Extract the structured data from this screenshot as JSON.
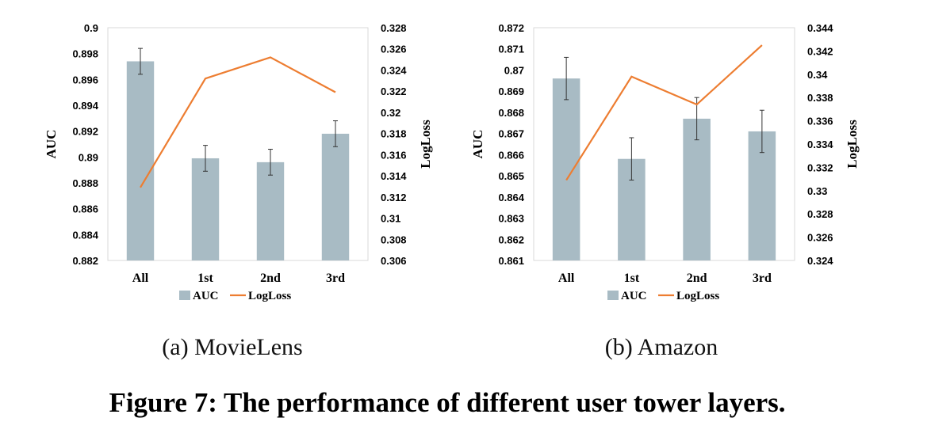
{
  "figure": {
    "caption": "Figure 7: The performance of different user tower layers."
  },
  "chart_data": [
    {
      "type": "bar",
      "subtitle": "(a)  MovieLens",
      "categories": [
        "All",
        "1st",
        "2nd",
        "3rd"
      ],
      "ylabel": "AUC",
      "y2label": "LogLoss",
      "ylim": [
        0.882,
        0.9
      ],
      "yticks": [
        "0.9",
        "0.898",
        "0.896",
        "0.894",
        "0.892",
        "0.89",
        "0.888",
        "0.886",
        "0.884",
        "0.882"
      ],
      "y2lim": [
        0.306,
        0.328
      ],
      "y2ticks": [
        "0.328",
        "0.326",
        "0.324",
        "0.322",
        "0.32",
        "0.318",
        "0.316",
        "0.314",
        "0.312",
        "0.31",
        "0.308",
        "0.306"
      ],
      "series": [
        {
          "name": "AUC",
          "kind": "bar",
          "axis": "left",
          "color": "#a8bbc4",
          "values": [
            0.8974,
            0.8899,
            0.8896,
            0.8918
          ],
          "errors": [
            0.001,
            0.001,
            0.001,
            0.001
          ]
        },
        {
          "name": "LogLoss",
          "kind": "line",
          "axis": "right",
          "color": "#ed7d31",
          "values": [
            0.3129,
            0.3232,
            0.3252,
            0.3219
          ]
        }
      ],
      "legend": "bottom"
    },
    {
      "type": "bar",
      "subtitle": "(b)  Amazon",
      "categories": [
        "All",
        "1st",
        "2nd",
        "3rd"
      ],
      "ylabel": "AUC",
      "y2label": "LogLoss",
      "ylim": [
        0.861,
        0.872
      ],
      "yticks": [
        "0.872",
        "0.871",
        "0.87",
        "0.869",
        "0.868",
        "0.867",
        "0.866",
        "0.865",
        "0.864",
        "0.863",
        "0.862",
        "0.861"
      ],
      "y2lim": [
        0.324,
        0.344
      ],
      "y2ticks": [
        "0.344",
        "0.342",
        "0.34",
        "0.338",
        "0.336",
        "0.334",
        "0.332",
        "0.33",
        "0.328",
        "0.326",
        "0.324"
      ],
      "series": [
        {
          "name": "AUC",
          "kind": "bar",
          "axis": "left",
          "color": "#a8bbc4",
          "values": [
            0.8696,
            0.8658,
            0.8677,
            0.8671
          ],
          "errors": [
            0.001,
            0.001,
            0.001,
            0.001
          ]
        },
        {
          "name": "LogLoss",
          "kind": "line",
          "axis": "right",
          "color": "#ed7d31",
          "values": [
            0.3309,
            0.3398,
            0.3374,
            0.3425
          ]
        }
      ],
      "legend": "bottom"
    }
  ]
}
